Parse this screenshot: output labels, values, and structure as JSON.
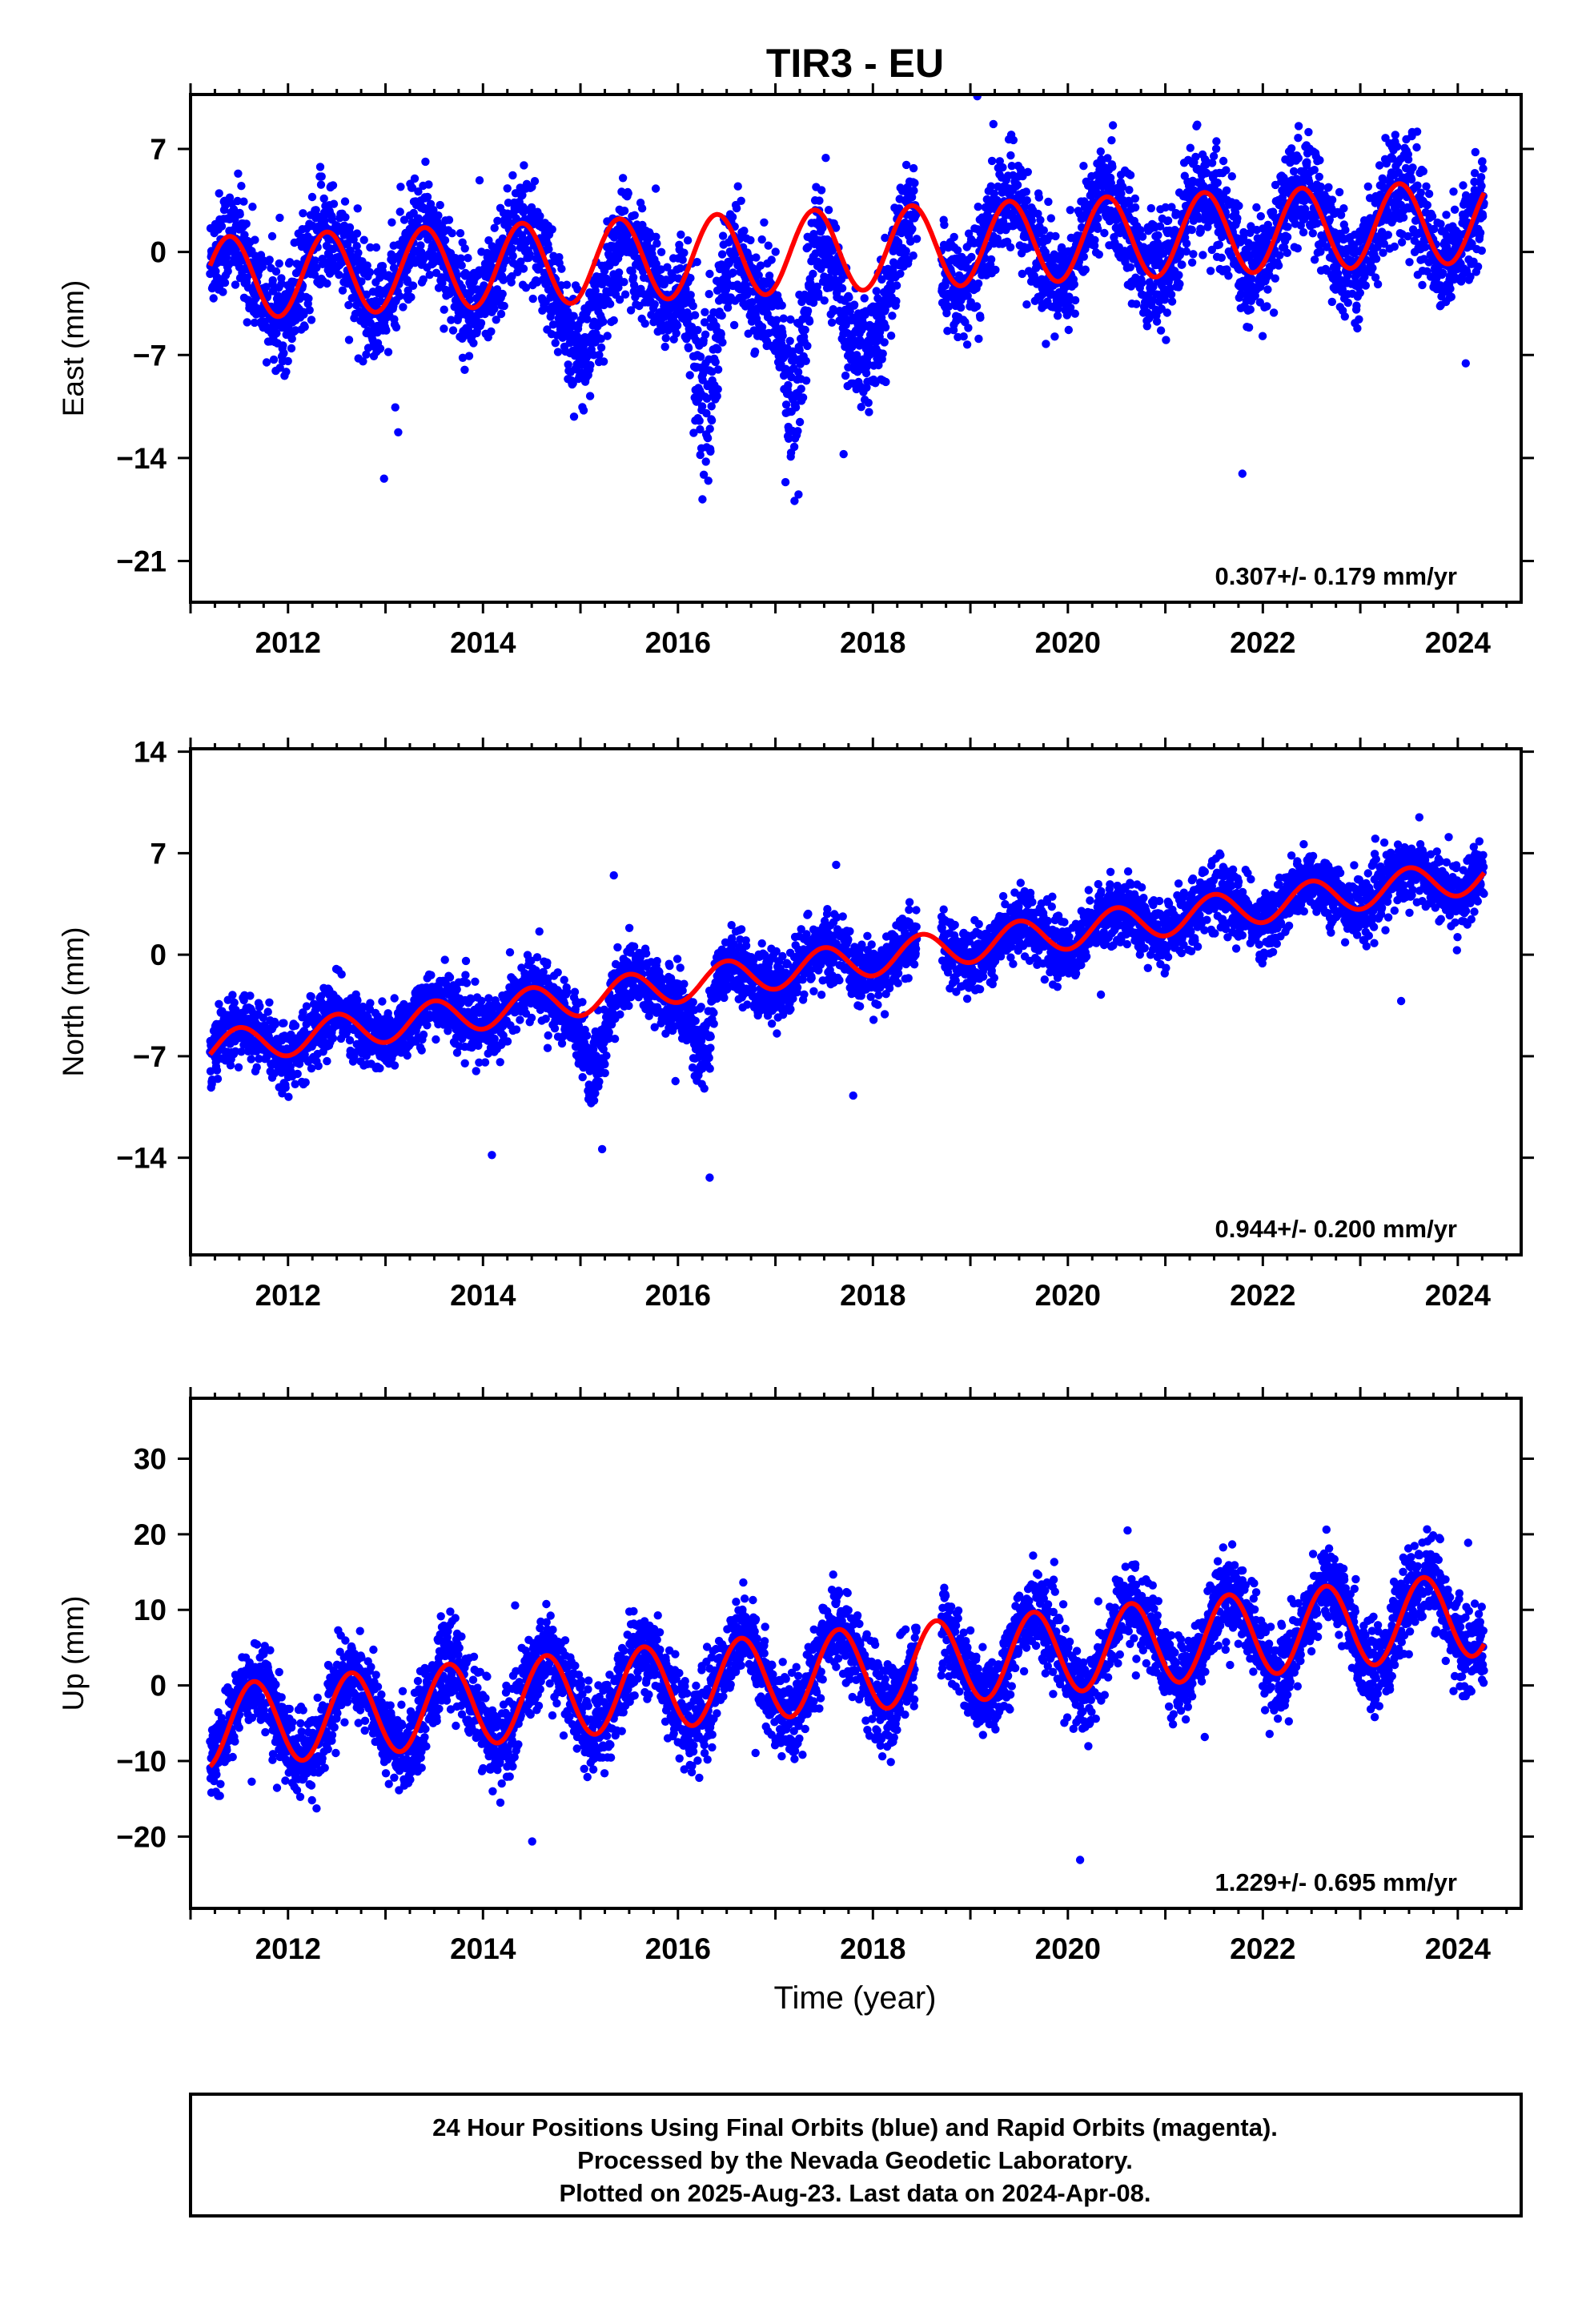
{
  "chart_data": {
    "title": "TIR3 - EU",
    "xlabel": "Time (year)",
    "xlim": [
      2011.0,
      2024.65
    ],
    "xticks": [
      "2012",
      "2014",
      "2016",
      "2018",
      "2020",
      "2022",
      "2024"
    ],
    "data_range": [
      2011.2,
      2024.27
    ],
    "colors": {
      "final_orbits": "#0000ff",
      "model": "#ff0000",
      "frame": "#000000"
    },
    "panels": [
      {
        "type": "scatter",
        "component": "East",
        "ylabel": "East (mm)",
        "ylim": [
          -23.8,
          10.7
        ],
        "yticks": [
          "7",
          "0",
          "−7",
          "−14",
          "−21"
        ],
        "rate": "0.307+/- 0.179 mm/yr",
        "model": {
          "base_start": -1.8,
          "base_end": 2.1,
          "amplitude": 2.8,
          "phase_year": 2011.4,
          "annual_amplitude_note": "seasonal fit"
        },
        "scatter": 3.2,
        "transients": [
          {
            "center": 2016.3,
            "width": 0.18,
            "depth": -14
          },
          {
            "center": 2017.2,
            "width": 0.15,
            "depth": -13
          },
          {
            "center": 2017.9,
            "width": 0.4,
            "depth": -5
          },
          {
            "center": 2015.1,
            "width": 0.3,
            "depth": -5
          }
        ]
      },
      {
        "type": "scatter",
        "component": "North",
        "ylabel": "North (mm)",
        "ylim": [
          -20.7,
          14.2
        ],
        "yticks": [
          "14",
          "7",
          "0",
          "−7",
          "−14"
        ],
        "rate": "0.944+/- 0.200 mm/yr",
        "model": {
          "base_start": -6.5,
          "base_end": 5.5,
          "amplitude": 1.2,
          "phase_year": 2011.5
        },
        "scatter": 2.0,
        "transients": [
          {
            "center": 2016.25,
            "width": 0.12,
            "depth": -6
          },
          {
            "center": 2015.15,
            "width": 0.15,
            "depth": -5
          }
        ]
      },
      {
        "type": "scatter",
        "component": "Up",
        "ylabel": "Up (mm)",
        "ylim": [
          -29.5,
          38.0
        ],
        "yticks": [
          "30",
          "20",
          "10",
          "0",
          "−10",
          "−20"
        ],
        "rate": "1.229+/- 0.695 mm/yr",
        "model": {
          "base_start": -5.5,
          "base_end": 9.5,
          "amplitude": 5.5,
          "phase_year": 2011.65
        },
        "scatter": 5.0,
        "transients": []
      }
    ]
  },
  "footer": {
    "line1": "24 Hour Positions Using Final Orbits (blue) and Rapid Orbits (magenta).",
    "line2": "Processed by the Nevada Geodetic Laboratory.",
    "line3": "Plotted on 2025-Aug-23. Last data on 2024-Apr-08."
  }
}
